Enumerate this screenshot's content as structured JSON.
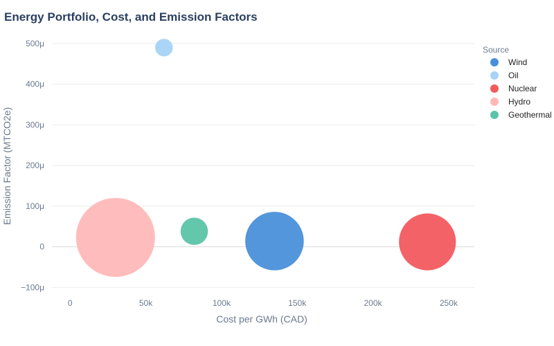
{
  "chart_data": {
    "type": "scatter",
    "title": "Energy Portfolio, Cost, and Emission Factors",
    "xlabel": "Cost per GWh (CAD)",
    "ylabel": "Emission Factor (MTCO2e)",
    "xlim": [
      -12000,
      267000
    ],
    "ylim": [
      -0.000125,
      0.000505
    ],
    "x_ticks": [
      {
        "value": 0,
        "label": "0"
      },
      {
        "value": 50000,
        "label": "50k"
      },
      {
        "value": 100000,
        "label": "100k"
      },
      {
        "value": 150000,
        "label": "150k"
      },
      {
        "value": 200000,
        "label": "200k"
      },
      {
        "value": 250000,
        "label": "250k"
      }
    ],
    "y_ticks": [
      {
        "value": -0.0001,
        "label": "−100μ"
      },
      {
        "value": 0,
        "label": "0"
      },
      {
        "value": 0.0001,
        "label": "100μ"
      },
      {
        "value": 0.0002,
        "label": "200μ"
      },
      {
        "value": 0.0003,
        "label": "300μ"
      },
      {
        "value": 0.0004,
        "label": "400μ"
      },
      {
        "value": 0.0005,
        "label": "500μ"
      }
    ],
    "grid": true,
    "legend_title": "Source",
    "legend_position": "right",
    "size_encoding": "relative bubble size",
    "series": [
      {
        "name": "Wind",
        "color": "#4a90d9",
        "x": 135000,
        "y": 1.4e-05,
        "size": 0.55
      },
      {
        "name": "Oil",
        "color": "#a6d3f5",
        "x": 62000,
        "y": 0.00049,
        "size": 0.05
      },
      {
        "name": "Nuclear",
        "color": "#f25a5e",
        "x": 236000,
        "y": 1.2e-05,
        "size": 0.52
      },
      {
        "name": "Hydro",
        "color": "#ffb8b8",
        "x": 30000,
        "y": 2.3e-05,
        "size": 1.0
      },
      {
        "name": "Geothermal",
        "color": "#5bc4a8",
        "x": 82000,
        "y": 3.8e-05,
        "size": 0.12
      }
    ]
  }
}
